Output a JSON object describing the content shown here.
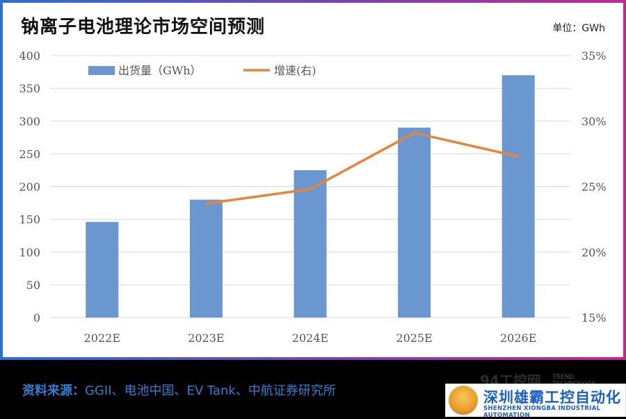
{
  "header": {
    "title": "钠离子电池理论市场空间预测",
    "unit": "单位：GWh"
  },
  "chart_data": {
    "type": "bar",
    "categories": [
      "2022E",
      "2023E",
      "2024E",
      "2025E",
      "2026E"
    ],
    "series": [
      {
        "name": "出货量（GWh）",
        "kind": "bar",
        "axis": "left",
        "color": "#6a97d0",
        "values": [
          146,
          180,
          225,
          290,
          370
        ]
      },
      {
        "name": "增速(右)",
        "kind": "line",
        "axis": "right",
        "color": "#e8833a",
        "values": [
          null,
          23.7,
          24.8,
          29.1,
          27.3
        ]
      }
    ],
    "y_left": {
      "min": 0,
      "max": 400,
      "step": 50,
      "ticks": [
        "0",
        "50",
        "100",
        "150",
        "200",
        "250",
        "300",
        "350",
        "400"
      ]
    },
    "y_right": {
      "min": 15,
      "max": 35,
      "step": 5,
      "ticks": [
        "15%",
        "20%",
        "25%",
        "30%",
        "35%"
      ]
    },
    "grid": true,
    "legend": "top-left"
  },
  "footer": {
    "source_label": "资料来源：",
    "source_text": "GGII、电池中国、EV Tank、中航证券研究所",
    "logo_cn": "深圳雄霸工控自动化",
    "logo_en": "SHENZHEN XIONGBA INDUSTRIAL AUTOMATION",
    "watermark": "94工控网",
    "watermark_sub1": "TREND",
    "watermark_sub2": "TECHNOLOGY"
  }
}
